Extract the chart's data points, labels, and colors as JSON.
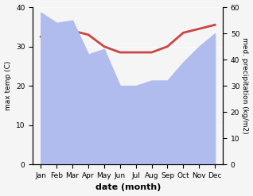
{
  "months": [
    "Jan",
    "Feb",
    "Mar",
    "Apr",
    "May",
    "Jun",
    "Jul",
    "Aug",
    "Sep",
    "Oct",
    "Nov",
    "Dec"
  ],
  "x": [
    0,
    1,
    2,
    3,
    4,
    5,
    6,
    7,
    8,
    9,
    10,
    11
  ],
  "precip": [
    58,
    54,
    55,
    42,
    44,
    30,
    30,
    32,
    32,
    39,
    45,
    50
  ],
  "temp": [
    32.5,
    33.0,
    34.0,
    33.0,
    30.0,
    28.5,
    28.5,
    28.5,
    30.0,
    33.5,
    34.5,
    35.5
  ],
  "precip_color": "#b0bbee",
  "temp_color": "#cc4444",
  "ylim_left": [
    0,
    40
  ],
  "ylim_right": [
    0,
    60
  ],
  "xlabel": "date (month)",
  "ylabel_left": "max temp (C)",
  "ylabel_right": "med. precipitation (kg/m2)",
  "bg_color": "#f5f5f5",
  "title": ""
}
